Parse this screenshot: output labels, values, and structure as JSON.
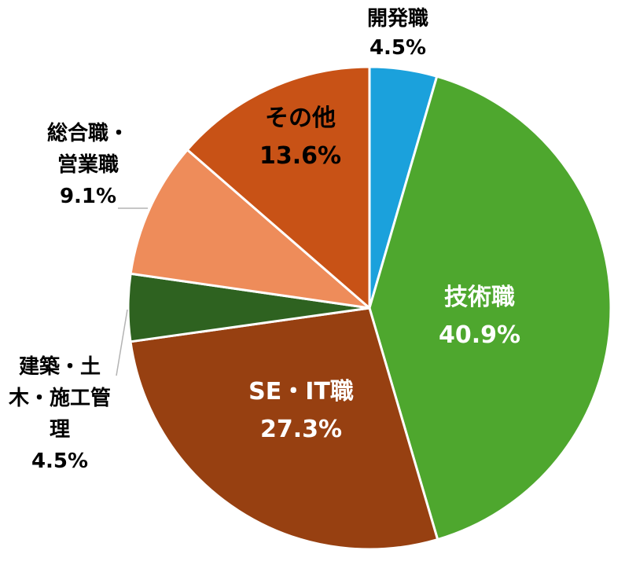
{
  "chart_data": {
    "type": "pie",
    "slices": [
      {
        "label": "開発職",
        "value": 4.5,
        "value_label": "4.5%",
        "color": "#1ba1dc"
      },
      {
        "label": "技術職",
        "value": 40.9,
        "value_label": "40.9%",
        "color": "#4ea72e"
      },
      {
        "label": "SE・IT職",
        "value": 27.3,
        "value_label": "27.3%",
        "color": "#974011"
      },
      {
        "label": "建築・土木・施工管理",
        "value": 4.5,
        "value_label": "4.5%",
        "color": "#2e6220"
      },
      {
        "label": "総合職・営業職",
        "value": 9.1,
        "value_label": "9.1%",
        "color": "#ee8c5a"
      },
      {
        "label": "その他",
        "value": 13.6,
        "value_label": "13.6%",
        "color": "#c85216"
      }
    ],
    "start_angle": "12 o'clock",
    "direction": "clockwise",
    "legend": "none",
    "label_colors": {
      "inside": "#ffffff",
      "inside_dark": "#000000",
      "outside": "#000000"
    }
  }
}
